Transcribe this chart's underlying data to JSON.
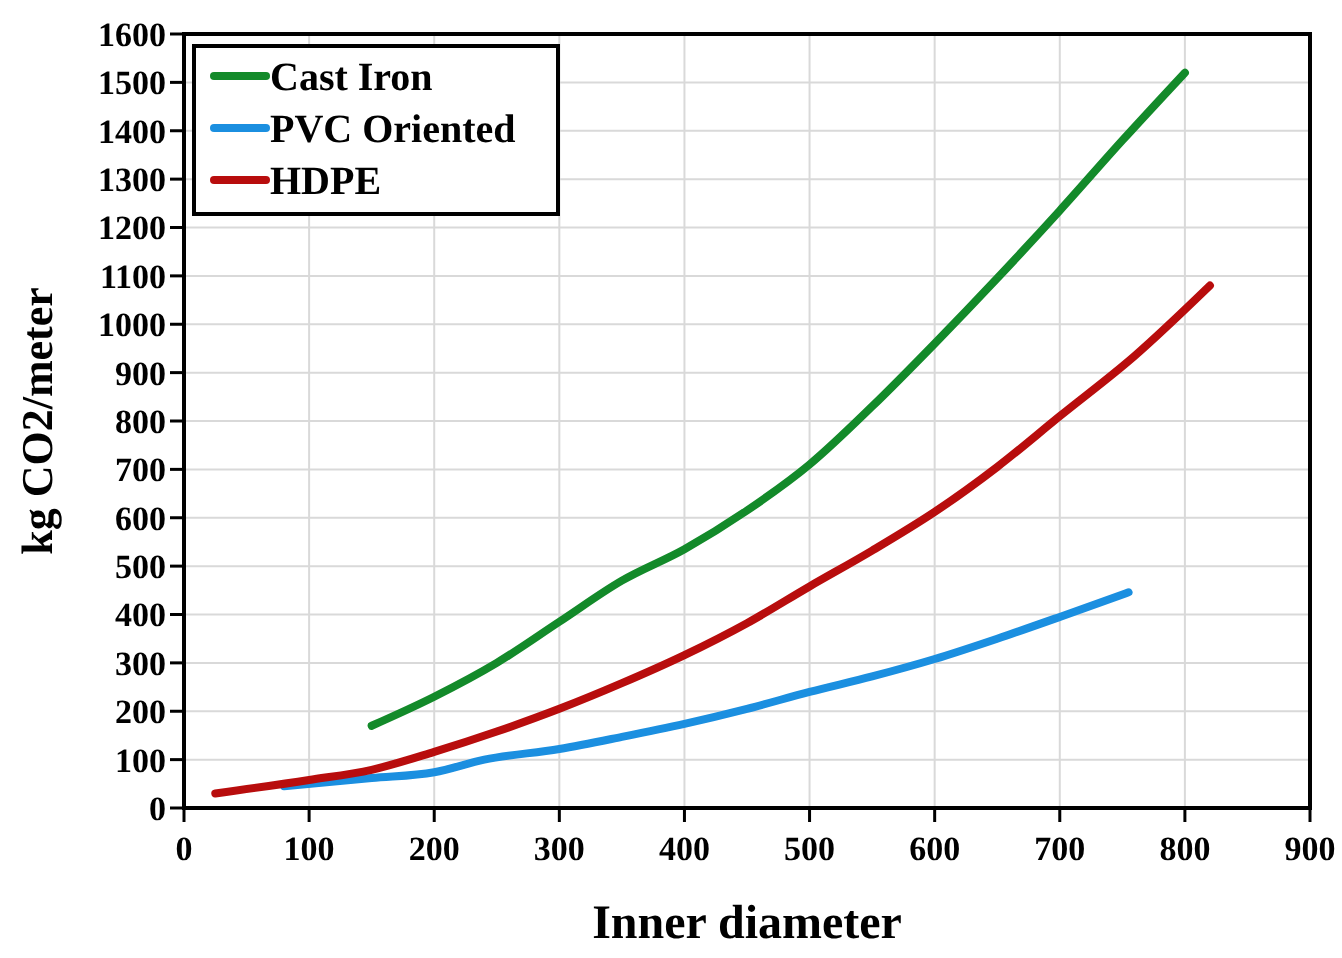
{
  "chart_data": {
    "type": "line",
    "xlabel": "Inner diameter",
    "ylabel": "kg CO2/meter",
    "xlim": [
      0,
      900
    ],
    "ylim": [
      0,
      1600
    ],
    "xticks": [
      0,
      100,
      200,
      300,
      400,
      500,
      600,
      700,
      800,
      900
    ],
    "yticks": [
      0,
      100,
      200,
      300,
      400,
      500,
      600,
      700,
      800,
      900,
      1000,
      1100,
      1200,
      1300,
      1400,
      1500,
      1600
    ],
    "grid": true,
    "legend": "top left",
    "marker": "none",
    "line_style": "solid",
    "series": [
      {
        "name": "Cast Iron",
        "color": "#138a2a",
        "x": [
          150,
          200,
          250,
          300,
          350,
          400,
          450,
          500,
          550,
          600,
          650,
          700,
          750,
          800
        ],
        "values": [
          170,
          230,
          300,
          385,
          470,
          535,
          615,
          710,
          830,
          960,
          1095,
          1235,
          1380,
          1520
        ]
      },
      {
        "name": "PVC Oriented",
        "color": "#1b8fe0",
        "x": [
          80,
          150,
          200,
          240,
          300,
          350,
          400,
          450,
          500,
          550,
          600,
          650,
          700,
          755
        ],
        "values": [
          45,
          62,
          74,
          100,
          122,
          147,
          174,
          205,
          240,
          272,
          308,
          350,
          395,
          446
        ]
      },
      {
        "name": "HDPE",
        "color": "#b80d0d",
        "x": [
          25,
          100,
          150,
          200,
          250,
          300,
          350,
          400,
          450,
          500,
          550,
          600,
          650,
          700,
          760,
          820
        ],
        "values": [
          30,
          58,
          79,
          116,
          158,
          205,
          258,
          316,
          382,
          458,
          532,
          612,
          705,
          810,
          935,
          1080
        ]
      }
    ]
  }
}
